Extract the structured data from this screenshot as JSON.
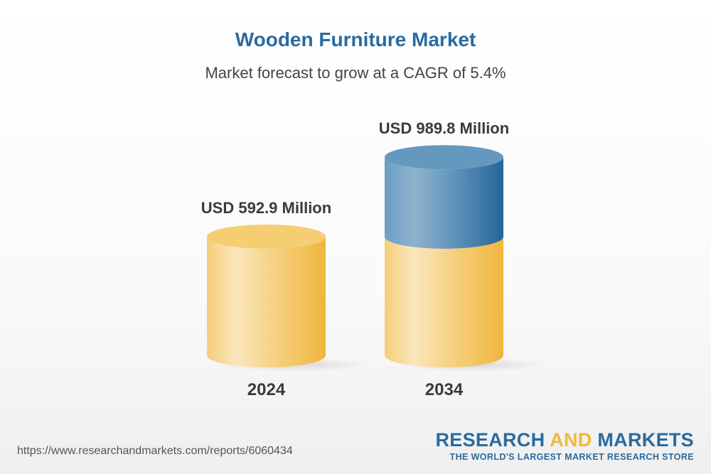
{
  "chart_data": {
    "type": "bar",
    "style": "3d-cylinder",
    "title": "Wooden Furniture Market",
    "subtitle": "Market forecast to grow at a CAGR of 5.4%",
    "categories": [
      "2024",
      "2034"
    ],
    "values": [
      592.9,
      989.8
    ],
    "data_labels": [
      "USD 592.9 Million",
      "USD 989.8 Million"
    ],
    "unit": "USD Million",
    "colors": {
      "base": "#f2c050",
      "growth": "#2a6b9f"
    }
  },
  "footer": {
    "url": "https://www.researchandmarkets.com/reports/6060434",
    "logo_line1_a": "RESEARCH ",
    "logo_line1_b": "AND",
    "logo_line1_c": " MARKETS",
    "logo_line2": "THE WORLD'S LARGEST MARKET RESEARCH STORE"
  }
}
